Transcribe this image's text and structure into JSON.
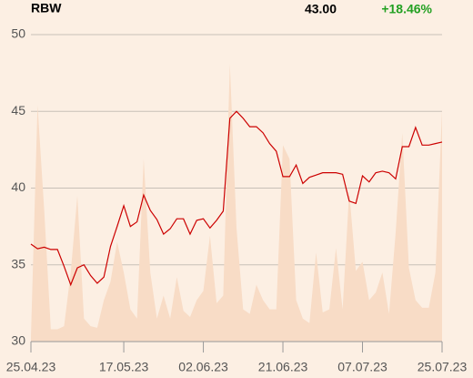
{
  "header": {
    "symbol": "RBW",
    "price": "43.00",
    "change": "+18.46%",
    "change_color": "#22a022"
  },
  "chart_data": {
    "type": "line",
    "categories": [
      "25.04.23",
      null,
      null,
      null,
      null,
      null,
      null,
      null,
      null,
      null,
      null,
      null,
      null,
      null,
      "17.05.23",
      null,
      null,
      null,
      null,
      null,
      null,
      null,
      null,
      null,
      null,
      null,
      "02.06.23",
      null,
      null,
      null,
      null,
      null,
      null,
      null,
      null,
      null,
      null,
      null,
      "21.06.23",
      null,
      null,
      null,
      null,
      null,
      null,
      null,
      null,
      null,
      null,
      null,
      "07.07.23",
      null,
      null,
      null,
      null,
      null,
      null,
      null,
      null,
      null,
      null,
      null,
      "25.07.23"
    ],
    "series": [
      {
        "type": "area",
        "color": "#f8dcc6",
        "values": [
          30.3,
          45.4,
          38.6,
          30.8,
          30.8,
          31.0,
          34.5,
          39.5,
          31.5,
          31.0,
          30.9,
          32.7,
          33.9,
          36.5,
          34.5,
          32.1,
          31.5,
          41.9,
          34.5,
          31.5,
          33.0,
          31.5,
          34.2,
          32.0,
          31.6,
          32.7,
          33.3,
          36.9,
          32.5,
          33.0,
          48.1,
          37.4,
          32.1,
          31.8,
          33.7,
          32.7,
          32.1,
          32.1,
          42.8,
          41.9,
          32.7,
          31.5,
          31.2,
          35.8,
          31.9,
          32.1,
          36.1,
          32.1,
          39.8,
          34.6,
          35.2,
          32.7,
          33.2,
          34.5,
          31.8,
          37.1,
          43.6,
          34.8,
          32.7,
          32.2,
          32.2,
          34.5,
          45.1
        ]
      },
      {
        "type": "line",
        "color": "#cc0000",
        "values": [
          36.35,
          36.05,
          36.15,
          36.0,
          36.0,
          34.9,
          33.7,
          34.8,
          35.0,
          34.3,
          33.8,
          34.2,
          36.2,
          37.5,
          38.85,
          37.5,
          37.8,
          39.55,
          38.55,
          37.95,
          37.0,
          37.35,
          38.0,
          38.0,
          37.0,
          37.9,
          38.0,
          37.4,
          37.9,
          38.5,
          44.55,
          45.0,
          44.55,
          44.0,
          44.0,
          43.6,
          42.9,
          42.4,
          40.75,
          40.75,
          41.5,
          40.3,
          40.7,
          40.85,
          41.0,
          41.0,
          41.0,
          40.9,
          39.15,
          39.0,
          40.8,
          40.4,
          41.0,
          41.1,
          41.0,
          40.6,
          42.7,
          42.7,
          43.95,
          42.8,
          42.8,
          42.9,
          43.0
        ]
      }
    ],
    "ylim": [
      30,
      50
    ],
    "yticks": [
      30,
      35,
      40,
      45,
      50
    ],
    "grid": true
  }
}
